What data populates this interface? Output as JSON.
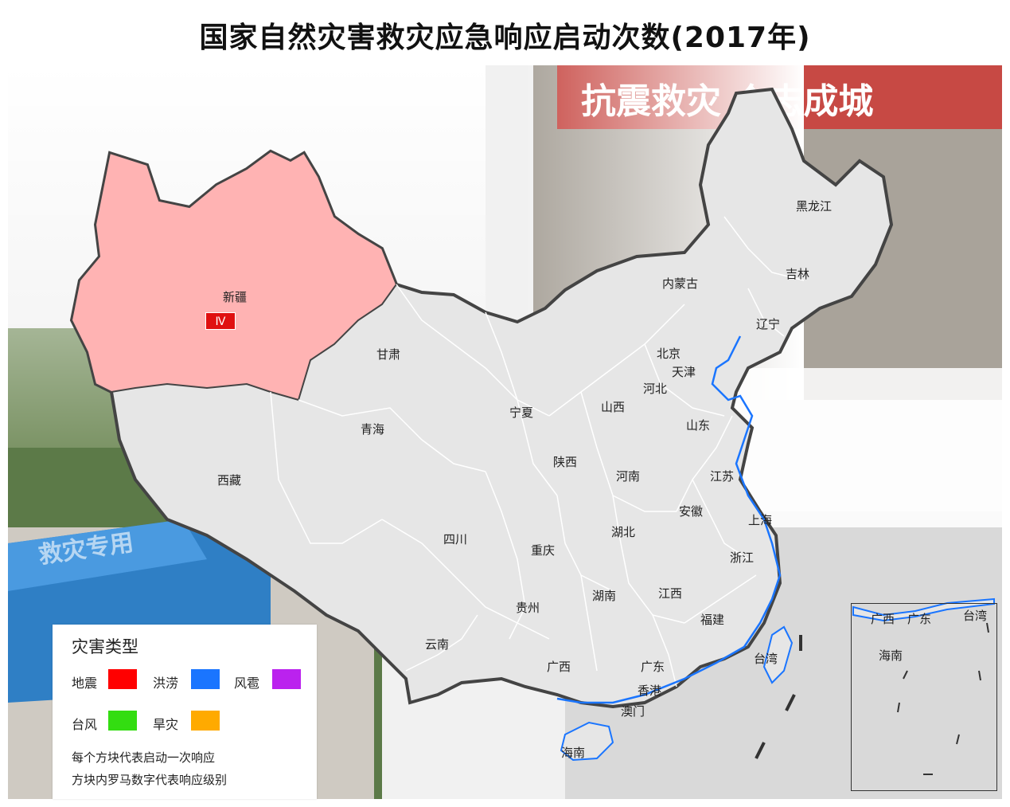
{
  "title": "国家自然灾害救灾应急响应启动次数(2017年)",
  "banner_text": "抗震救灾  众志成城",
  "tent_text": "救灾专用",
  "provinces": {
    "xinjiang": "新疆",
    "xizang": "西藏",
    "qinghai": "青海",
    "gansu": "甘肃",
    "neimenggu": "内蒙古",
    "heilongjiang": "黑龙江",
    "jilin": "吉林",
    "liaoning": "辽宁",
    "beijing": "北京",
    "tianjin": "天津",
    "hebei": "河北",
    "shanxi": "山西",
    "shandong": "山东",
    "ningxia": "宁夏",
    "shaanxi": "陕西",
    "henan": "河南",
    "jiangsu": "江苏",
    "anhui": "安徽",
    "shanghai": "上海",
    "sichuan": "四川",
    "chongqing": "重庆",
    "hubei": "湖北",
    "zhejiang": "浙江",
    "guizhou": "贵州",
    "hunan": "湖南",
    "jiangxi": "江西",
    "fujian": "福建",
    "taiwan": "台湾",
    "yunnan": "云南",
    "guangxi": "广西",
    "guangdong": "广东",
    "xianggang": "香港",
    "aomen": "澳门",
    "hainan": "海南"
  },
  "responses": [
    {
      "region": "新疆",
      "type": "地震",
      "level": "Ⅳ",
      "color": "#e01010"
    }
  ],
  "highlight_color": "#ffb3b3",
  "legend": {
    "title": "灾害类型",
    "items": [
      {
        "label": "地震",
        "color": "#ff0000"
      },
      {
        "label": "洪涝",
        "color": "#1a75ff"
      },
      {
        "label": "风雹",
        "color": "#bb22ee"
      },
      {
        "label": "台风",
        "color": "#33dd11"
      },
      {
        "label": "旱灾",
        "color": "#ffaa00"
      }
    ],
    "note1": "每个方块代表启动一次响应",
    "note2": "方块内罗马数字代表响应级别"
  },
  "inset": {
    "guangxi": "广西",
    "guangdong": "广东",
    "taiwan": "台湾",
    "hainan": "海南"
  }
}
